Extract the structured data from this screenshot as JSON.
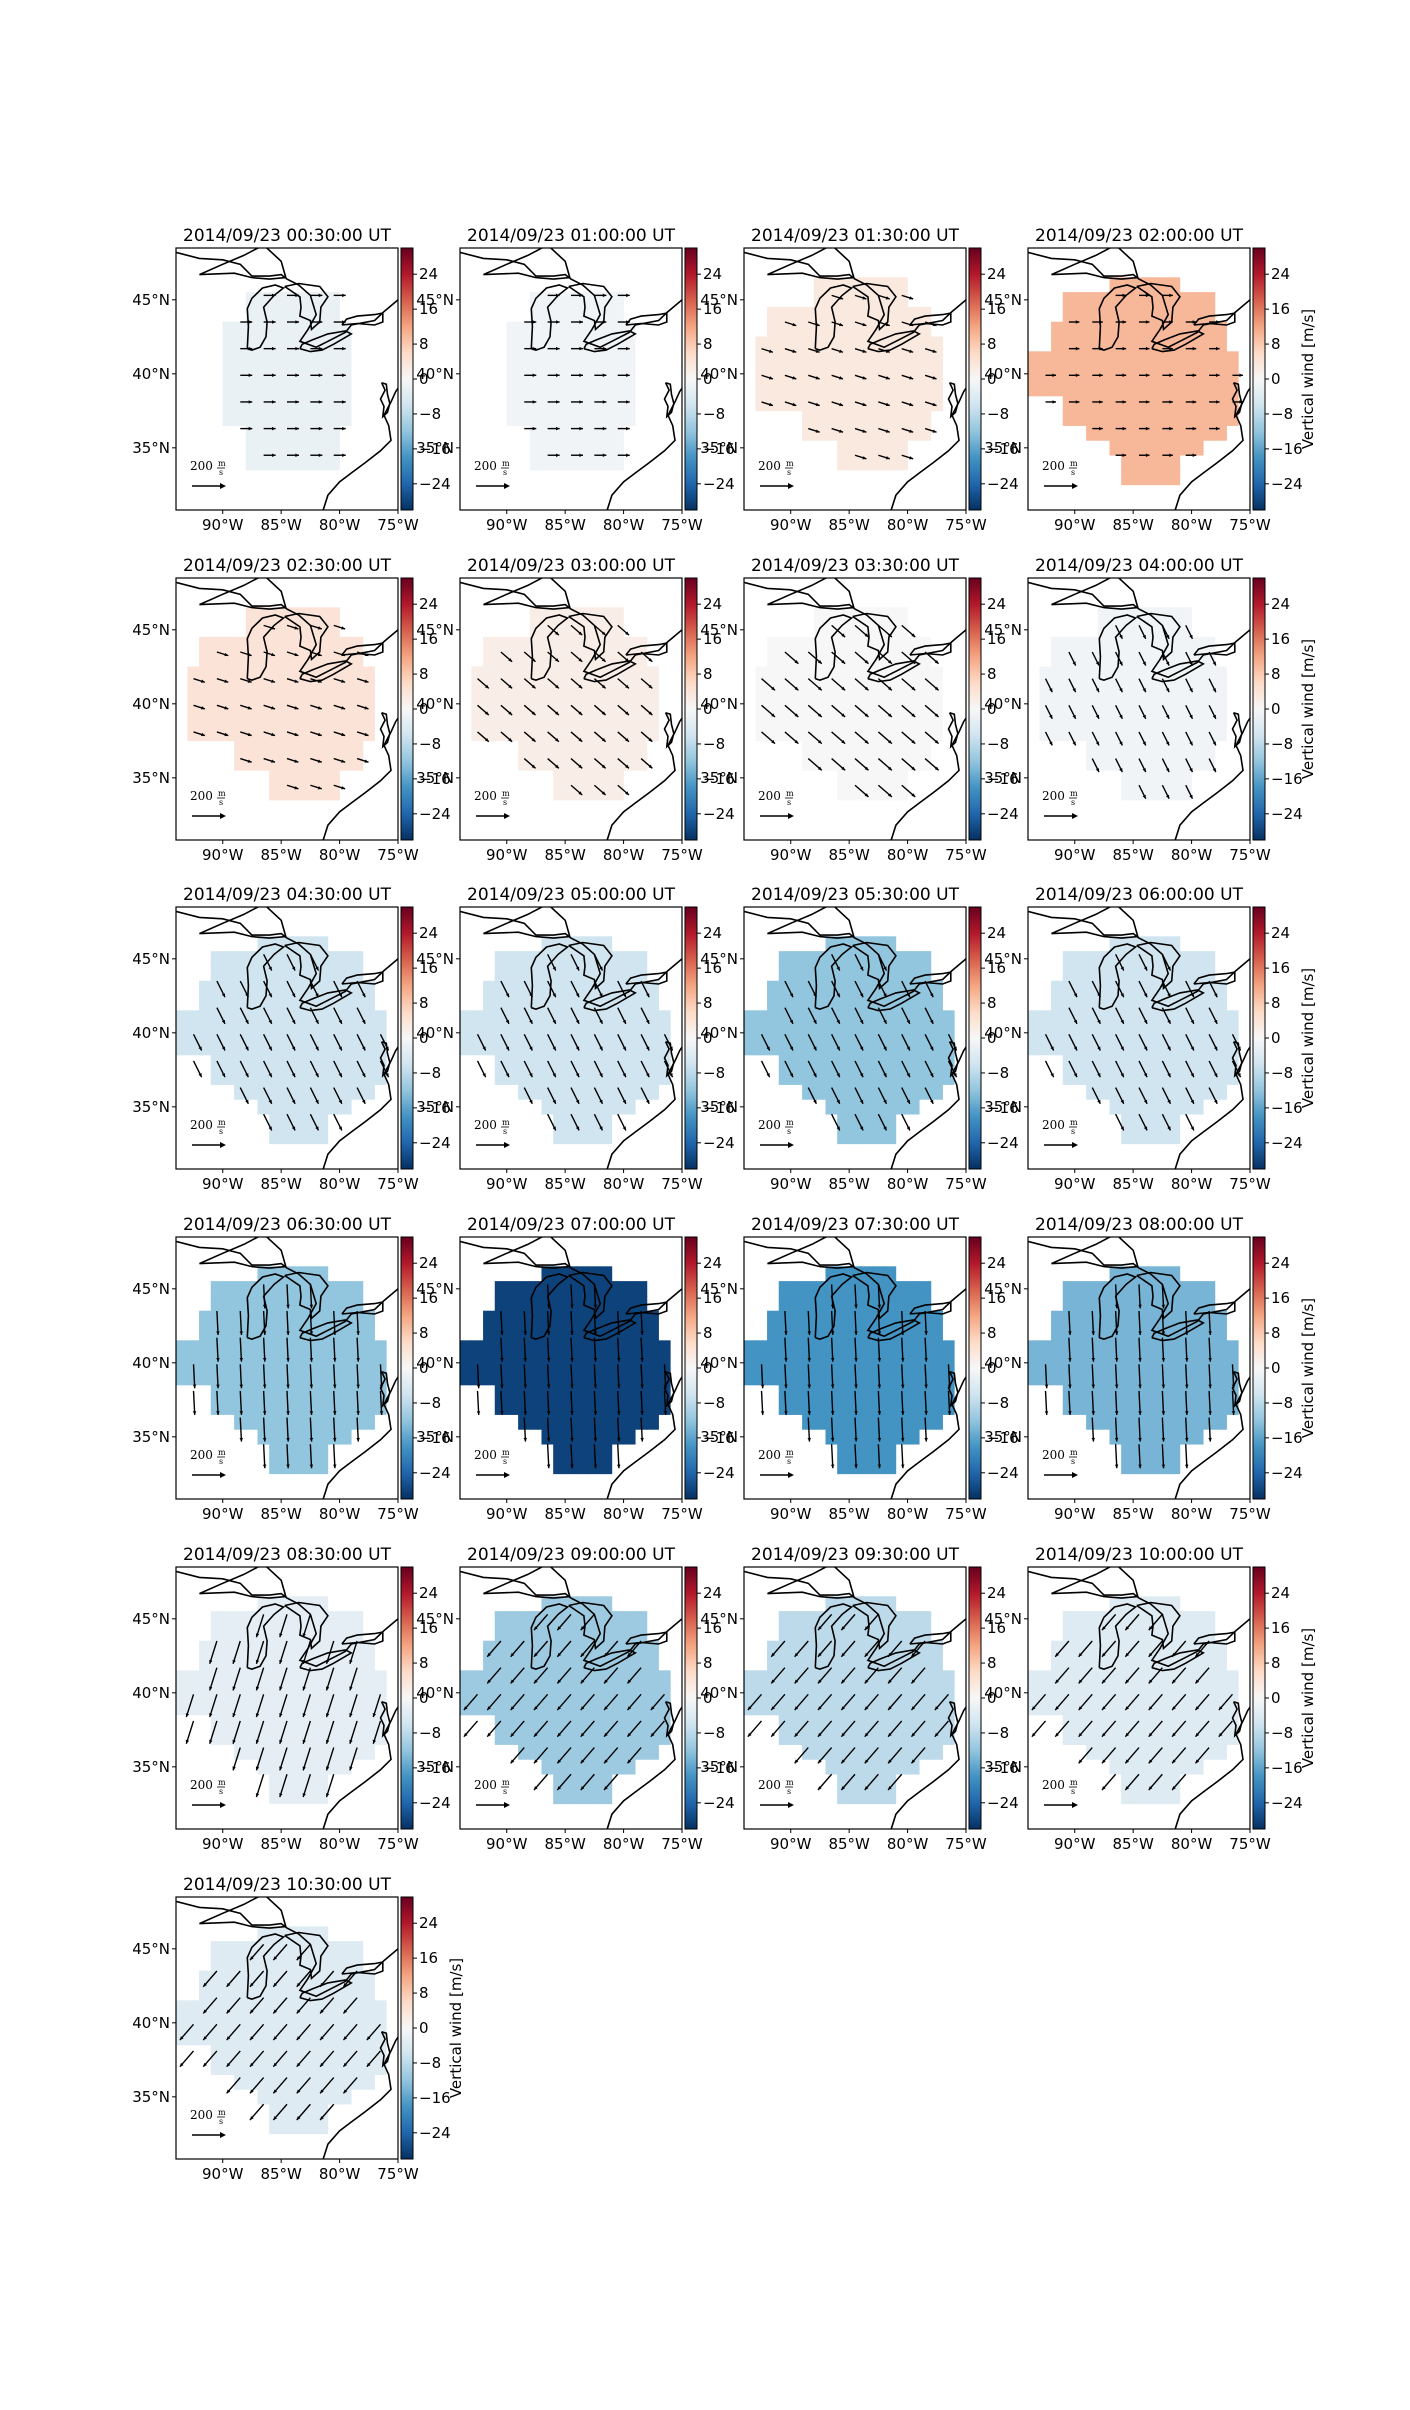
{
  "figure": {
    "ylabel_colorbar": "Vertical wind [m/s]",
    "lon_ticks": [
      "90°W",
      "85°W",
      "80°W",
      "75°W"
    ],
    "lat_ticks": [
      "45°N",
      "40°N",
      "35°N"
    ],
    "scale_label": "200",
    "scale_unit_num": "m",
    "scale_unit_den": "s",
    "colorbar_ticks": [
      "24",
      "16",
      "8",
      "0",
      "−8",
      "−16",
      "−24"
    ],
    "colormap": [
      "#053061",
      "#2166ac",
      "#4393c3",
      "#92c5de",
      "#d1e5f0",
      "#f7f7f7",
      "#fddbc7",
      "#f4a582",
      "#d6604d",
      "#b2182b",
      "#67001f"
    ]
  },
  "chart_data": {
    "type": "heatmap",
    "description_units": "vertical wind m/s; colorbar range -30 to 30",
    "clim": [
      -30,
      30
    ],
    "colorbar_ticks": [
      24,
      16,
      8,
      0,
      -8,
      -16,
      -24
    ],
    "xlim_lon": [
      -94,
      -75
    ],
    "ylim_lat": [
      30.8,
      48.5
    ],
    "panels": [
      {
        "title": "2014/09/23 00:30:00 UT",
        "vertical_wind": -2,
        "coverage": "small",
        "arrow_dir": "east",
        "arrow_len": 0.4
      },
      {
        "title": "2014/09/23 01:00:00 UT",
        "vertical_wind": -1,
        "coverage": "small",
        "arrow_dir": "east",
        "arrow_len": 0.4
      },
      {
        "title": "2014/09/23 01:30:00 UT",
        "vertical_wind": 3,
        "coverage": "medium",
        "arrow_dir": "east-se",
        "arrow_len": 0.4
      },
      {
        "title": "2014/09/23 02:00:00 UT",
        "vertical_wind": 10,
        "coverage": "large",
        "arrow_dir": "east",
        "arrow_len": 0.35
      },
      {
        "title": "2014/09/23 02:30:00 UT",
        "vertical_wind": 4,
        "coverage": "medium",
        "arrow_dir": "east-se",
        "arrow_len": 0.4
      },
      {
        "title": "2014/09/23 03:00:00 UT",
        "vertical_wind": 2,
        "coverage": "medium",
        "arrow_dir": "se",
        "arrow_len": 0.5
      },
      {
        "title": "2014/09/23 03:30:00 UT",
        "vertical_wind": 0,
        "coverage": "medium",
        "arrow_dir": "se",
        "arrow_len": 0.6
      },
      {
        "title": "2014/09/23 04:00:00 UT",
        "vertical_wind": -1,
        "coverage": "medium",
        "arrow_dir": "sse",
        "arrow_len": 0.5
      },
      {
        "title": "2014/09/23 04:30:00 UT",
        "vertical_wind": -6,
        "coverage": "large",
        "arrow_dir": "sse",
        "arrow_len": 0.6
      },
      {
        "title": "2014/09/23 05:00:00 UT",
        "vertical_wind": -6,
        "coverage": "large",
        "arrow_dir": "sse",
        "arrow_len": 0.6
      },
      {
        "title": "2014/09/23 05:30:00 UT",
        "vertical_wind": -12,
        "coverage": "large",
        "arrow_dir": "sse",
        "arrow_len": 0.6
      },
      {
        "title": "2014/09/23 06:00:00 UT",
        "vertical_wind": -6,
        "coverage": "large",
        "arrow_dir": "sse",
        "arrow_len": 0.6
      },
      {
        "title": "2014/09/23 06:30:00 UT",
        "vertical_wind": -12,
        "coverage": "large",
        "arrow_dir": "s",
        "arrow_len": 0.8
      },
      {
        "title": "2014/09/23 07:00:00 UT",
        "vertical_wind": -28,
        "coverage": "large",
        "arrow_dir": "s",
        "arrow_len": 0.8
      },
      {
        "title": "2014/09/23 07:30:00 UT",
        "vertical_wind": -18,
        "coverage": "large",
        "arrow_dir": "s",
        "arrow_len": 0.8
      },
      {
        "title": "2014/09/23 08:00:00 UT",
        "vertical_wind": -14,
        "coverage": "large",
        "arrow_dir": "s",
        "arrow_len": 0.8
      },
      {
        "title": "2014/09/23 08:30:00 UT",
        "vertical_wind": -3,
        "coverage": "large",
        "arrow_dir": "ssw",
        "arrow_len": 0.8
      },
      {
        "title": "2014/09/23 09:00:00 UT",
        "vertical_wind": -11,
        "coverage": "large",
        "arrow_dir": "sw",
        "arrow_len": 0.7
      },
      {
        "title": "2014/09/23 09:30:00 UT",
        "vertical_wind": -8,
        "coverage": "large",
        "arrow_dir": "sw",
        "arrow_len": 0.7
      },
      {
        "title": "2014/09/23 10:00:00 UT",
        "vertical_wind": -4,
        "coverage": "large",
        "arrow_dir": "sw",
        "arrow_len": 0.7
      },
      {
        "title": "2014/09/23 10:30:00 UT",
        "vertical_wind": -4,
        "coverage": "large",
        "arrow_dir": "sw",
        "arrow_len": 0.7
      }
    ]
  }
}
